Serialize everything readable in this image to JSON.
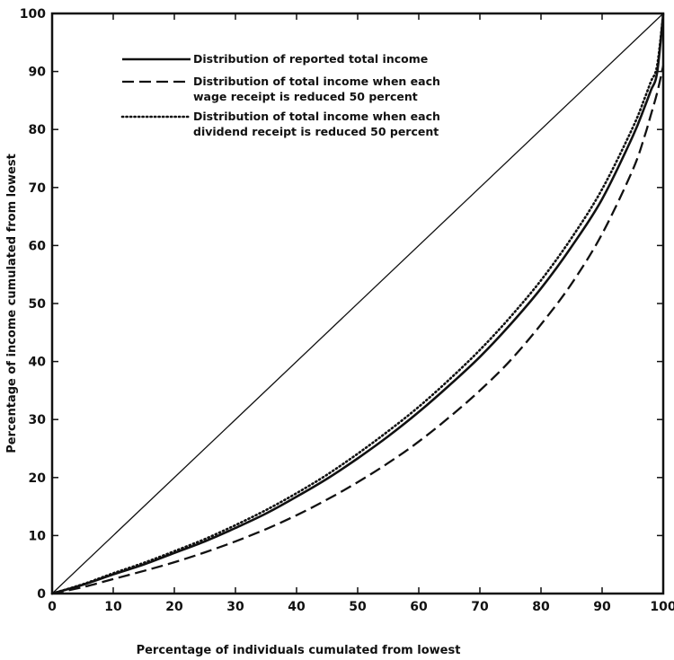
{
  "chart_data": {
    "type": "line",
    "title": "",
    "xlabel": "Percentage of individuals cumulated from lowest",
    "ylabel": "Percentage of income cumulated from lowest",
    "xlim": [
      0,
      100
    ],
    "ylim": [
      0,
      100
    ],
    "x_ticks": [
      0,
      10,
      20,
      30,
      40,
      50,
      60,
      70,
      80,
      90,
      100
    ],
    "y_ticks": [
      0,
      10,
      20,
      30,
      40,
      50,
      60,
      70,
      80,
      90,
      100
    ],
    "grid": false,
    "legend_position": "top-left",
    "reference_line": {
      "x": [
        0,
        100
      ],
      "y": [
        0,
        100
      ],
      "style": "solid-thin"
    },
    "series": [
      {
        "name": "Distribution of reported total income",
        "name_lines": [
          "Distribution of reported total income"
        ],
        "style": "solid",
        "x": [
          0,
          5,
          10,
          15,
          20,
          25,
          30,
          35,
          40,
          45,
          50,
          55,
          60,
          65,
          70,
          75,
          80,
          85,
          90,
          95,
          97,
          98,
          99,
          100
        ],
        "y": [
          0,
          1.5,
          3.3,
          5.0,
          7.0,
          9.0,
          11.3,
          13.8,
          16.7,
          19.8,
          23.3,
          27.1,
          31.3,
          35.9,
          40.8,
          46.4,
          52.6,
          59.8,
          68.0,
          78.8,
          84.0,
          86.8,
          89.8,
          100
        ]
      },
      {
        "name": "Distribution of total income when each wage receipt is reduced 50 percent",
        "name_lines": [
          "Distribution of total income when each",
          "wage receipt is reduced 50 percent"
        ],
        "style": "dashed",
        "x": [
          0,
          5,
          10,
          15,
          20,
          25,
          30,
          35,
          40,
          45,
          50,
          55,
          60,
          65,
          70,
          75,
          80,
          85,
          90,
          95,
          97,
          98,
          99,
          100
        ],
        "y": [
          0,
          1.1,
          2.5,
          3.9,
          5.4,
          7.1,
          9.0,
          11.1,
          13.5,
          16.2,
          19.2,
          22.5,
          26.2,
          30.4,
          35.0,
          40.2,
          46.4,
          53.4,
          62.0,
          73.0,
          79.0,
          82.6,
          86.3,
          91.0
        ]
      },
      {
        "name": "Distribution of total income when each dividend receipt is reduced 50 percent",
        "name_lines": [
          "Distribution of total income when each",
          "dividend receipt is reduced 50 percent"
        ],
        "style": "dotted",
        "x": [
          0,
          5,
          10,
          15,
          20,
          25,
          30,
          35,
          40,
          45,
          50,
          55,
          60,
          65,
          70,
          75,
          80,
          85,
          90,
          95,
          97,
          98,
          99,
          100
        ],
        "y": [
          0,
          1.6,
          3.5,
          5.3,
          7.3,
          9.4,
          11.8,
          14.4,
          17.3,
          20.5,
          24.1,
          28.0,
          32.2,
          36.9,
          42.0,
          47.7,
          54.0,
          61.3,
          69.7,
          80.3,
          85.5,
          88.3,
          91.0,
          100
        ]
      }
    ]
  }
}
